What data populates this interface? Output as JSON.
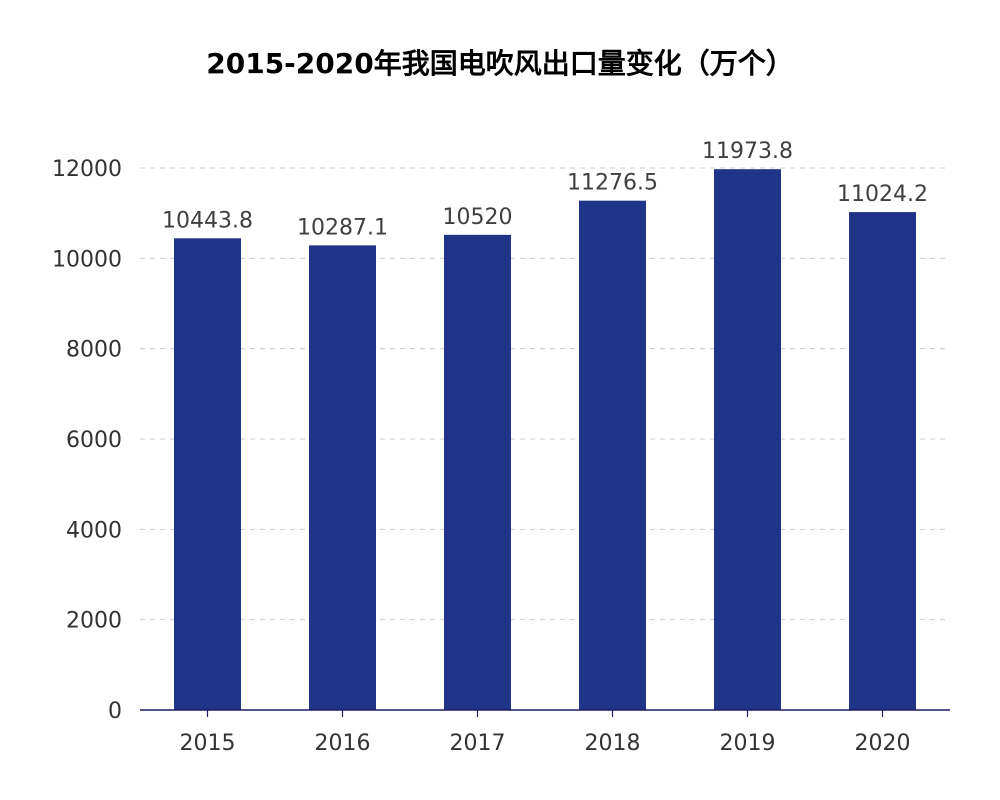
{
  "colors": {
    "bar": "#203587",
    "axis": "#1d1d66",
    "grid": "#cccccc",
    "text": "#333333"
  },
  "chart_data": {
    "type": "bar",
    "title": "2015-2020年我国电吹风出口量变化（万个）",
    "categories": [
      "2015",
      "2016",
      "2017",
      "2018",
      "2019",
      "2020"
    ],
    "values": [
      10443.8,
      10287.1,
      10520,
      11276.5,
      11973.8,
      11024.2
    ],
    "y_ticks": [
      0,
      2000,
      4000,
      6000,
      8000,
      10000,
      12000
    ],
    "ylim": [
      0,
      12000
    ],
    "grid": true,
    "grid_style": "dashed horizontal",
    "legend": "none",
    "data_labels": "above bars"
  }
}
